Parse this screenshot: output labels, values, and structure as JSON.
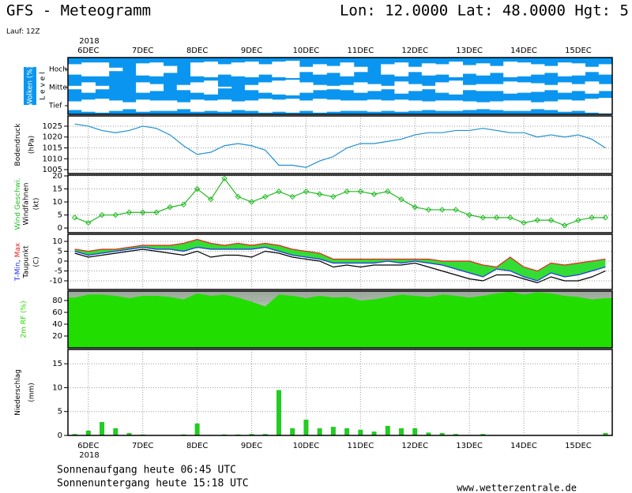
{
  "header": {
    "title": "GFS - Meteogramm",
    "location": "Lon: 12.0000  Lat: 48.0000  Hgt: 5",
    "run": "Lauf: 12Z"
  },
  "footer": {
    "sunrise": "Sonnenaufgang heute 06:45 UTC",
    "sunset": "Sonnenuntergang heute 15:18 UTC",
    "source": "www.wetterzentrale.de"
  },
  "chart_data": [
    {
      "type": "clouds",
      "title": "Wolken (%)",
      "axis_label": "L e v e l",
      "year": "2018",
      "background": "#0a96f0",
      "categories": [
        null,
        "6DEC",
        null,
        null,
        null,
        "7DEC",
        null,
        null,
        null,
        "8DEC",
        null,
        null,
        null,
        "9DEC",
        null,
        null,
        null,
        "10DEC",
        null,
        null,
        null,
        "11DEC",
        null,
        null,
        null,
        "12DEC",
        null,
        null,
        null,
        "13DEC",
        null,
        null,
        null,
        "14DEC",
        null,
        null,
        null,
        "15DEC",
        null,
        null
      ],
      "series": [
        {
          "name": "Hoch",
          "color": "#ffffff",
          "values": [
            60,
            80,
            80,
            20,
            0,
            70,
            80,
            40,
            0,
            80,
            90,
            60,
            80,
            90,
            60,
            90,
            100,
            30,
            60,
            40,
            80,
            30,
            0,
            60,
            80,
            30,
            70,
            60,
            90,
            50,
            70,
            40,
            90,
            80,
            60,
            40,
            80,
            70,
            30,
            60
          ]
        },
        {
          "name": "Mittel",
          "color": "#ffffff",
          "values": [
            20,
            60,
            20,
            0,
            0,
            60,
            40,
            0,
            30,
            60,
            80,
            10,
            0,
            30,
            60,
            80,
            90,
            60,
            30,
            20,
            30,
            60,
            40,
            20,
            70,
            40,
            20,
            60,
            80,
            30,
            40,
            40,
            70,
            60,
            50,
            30,
            60,
            40,
            70,
            40
          ]
        },
        {
          "name": "Tief",
          "color": "#ffffff",
          "values": [
            50,
            70,
            80,
            60,
            40,
            70,
            60,
            60,
            40,
            70,
            60,
            70,
            50,
            60,
            80,
            70,
            80,
            60,
            80,
            70,
            60,
            60,
            70,
            60,
            70,
            60,
            50,
            60,
            60,
            50,
            40,
            50,
            60,
            60,
            40,
            50,
            70,
            60,
            80,
            90
          ]
        }
      ]
    },
    {
      "type": "line",
      "ylabel": "Bodendruck",
      "yunit": "(hPa)",
      "ylim": [
        1003.2,
        1029.7
      ],
      "yticks": [
        1005,
        1010,
        1015,
        1020,
        1025
      ],
      "grid": true,
      "series": [
        {
          "name": "Bodendruck",
          "color": "#1e90d0",
          "values": [
            1026,
            1025,
            1023,
            1022,
            1023,
            1025,
            1024,
            1021,
            1016,
            1012,
            1013,
            1016,
            1017,
            1016,
            1014,
            1007,
            1007,
            1006,
            1009,
            1011,
            1015,
            1017,
            1017,
            1018,
            1019,
            1021,
            1022,
            1022,
            1023,
            1023,
            1024,
            1023,
            1022,
            1022,
            1020,
            1021,
            1020,
            1021,
            1019,
            1015
          ]
        }
      ]
    },
    {
      "type": "line",
      "ylabel": "Windfahnen",
      "yunit": "(kt)",
      "ylim": [
        -1.8,
        20.3
      ],
      "yticks": [
        0,
        5,
        10,
        15,
        20
      ],
      "grid": true,
      "marker": "diamond",
      "series": [
        {
          "name": "Wind Geschwi.",
          "color": "#22bb22",
          "values": [
            4,
            2,
            5,
            5,
            6,
            6,
            6,
            8,
            9,
            15,
            11,
            19,
            12,
            10,
            12,
            14,
            12,
            14,
            13,
            12,
            14,
            14,
            13,
            14,
            11,
            8,
            7,
            7,
            7,
            5,
            4,
            4,
            4,
            2,
            3,
            3,
            1,
            3,
            4,
            4
          ]
        }
      ]
    },
    {
      "type": "line",
      "ylabel": "Taupunkt",
      "yunit": "(C)",
      "label_separator": ",",
      "ylim": [
        -14.4,
        13.6
      ],
      "yticks": [
        10,
        5,
        0,
        -5,
        -10
      ],
      "grid": true,
      "fill_between": [
        0,
        1
      ],
      "fill_color": "#33dd33",
      "series": [
        {
          "name": "Max",
          "color": "#ee2222",
          "values": [
            6,
            5,
            6,
            6,
            7,
            8,
            8,
            8,
            9,
            11,
            9,
            8,
            9,
            8,
            9,
            8,
            6,
            5,
            4,
            1,
            1,
            1,
            1,
            1,
            1,
            1,
            1,
            0,
            0,
            0,
            -2,
            -3,
            2,
            -3,
            -5,
            -1,
            -2,
            -1,
            0,
            1
          ]
        },
        {
          "name": "T-Min",
          "color": "#2233ee",
          "values": [
            5,
            3,
            4,
            5,
            6,
            7,
            6,
            6,
            5,
            7,
            6,
            6,
            6,
            6,
            7,
            5,
            3,
            2,
            1,
            -1,
            -1,
            -1,
            -1,
            0,
            -1,
            0,
            -1,
            -2,
            -4,
            -6,
            -8,
            -4,
            -5,
            -8,
            -10,
            -6,
            -8,
            -7,
            -5,
            -3
          ]
        },
        {
          "name": "Taupunkt",
          "color": "#000000",
          "values": [
            4,
            2,
            3,
            4,
            5,
            6,
            5,
            4,
            3,
            5,
            2,
            3,
            3,
            2,
            5,
            4,
            2,
            1,
            0,
            -3,
            -2,
            -3,
            -2,
            -2,
            -2,
            -1,
            -3,
            -5,
            -7,
            -9,
            -10,
            -7,
            -7,
            -9,
            -11,
            -8,
            -10,
            -10,
            -8,
            -5
          ]
        }
      ]
    },
    {
      "type": "area",
      "ylim": [
        0,
        96
      ],
      "yticks": [
        20,
        40,
        60,
        80
      ],
      "grid": true,
      "series": [
        {
          "name": "2m RF (%)",
          "color": "#22dd00",
          "values": [
            85,
            90,
            90,
            88,
            84,
            88,
            88,
            86,
            82,
            92,
            88,
            90,
            85,
            78,
            70,
            90,
            88,
            84,
            88,
            85,
            86,
            80,
            82,
            86,
            90,
            88,
            86,
            90,
            88,
            85,
            88,
            92,
            95,
            90,
            94,
            92,
            88,
            86,
            82,
            84
          ]
        }
      ]
    },
    {
      "type": "bar",
      "ylabel": "Niederschlag",
      "yunit": "(mm)",
      "year": "2018",
      "ylim": [
        0,
        18
      ],
      "yticks": [
        0,
        5,
        10,
        15
      ],
      "grid": true,
      "categories": [
        null,
        "6DEC",
        null,
        null,
        null,
        "7DEC",
        null,
        null,
        null,
        "8DEC",
        null,
        null,
        null,
        "9DEC",
        null,
        null,
        null,
        "10DEC",
        null,
        null,
        null,
        "11DEC",
        null,
        null,
        null,
        "12DEC",
        null,
        null,
        null,
        "13DEC",
        null,
        null,
        null,
        "14DEC",
        null,
        null,
        null,
        "15DEC",
        null,
        null
      ],
      "series": [
        {
          "name": "Niederschlag",
          "color": "#22cc22",
          "values": [
            0.3,
            1,
            2.8,
            1.5,
            0.5,
            0.2,
            0,
            0,
            0.2,
            2.5,
            0.1,
            0.2,
            0.2,
            0.3,
            0.3,
            9.5,
            1.5,
            3.3,
            1.5,
            1.8,
            1.5,
            1.2,
            0.8,
            2,
            1.5,
            1.5,
            0.6,
            0.5,
            0.3,
            0.1,
            0.3,
            0,
            0,
            0,
            0,
            0,
            0,
            0,
            0,
            0.5
          ]
        }
      ]
    }
  ]
}
